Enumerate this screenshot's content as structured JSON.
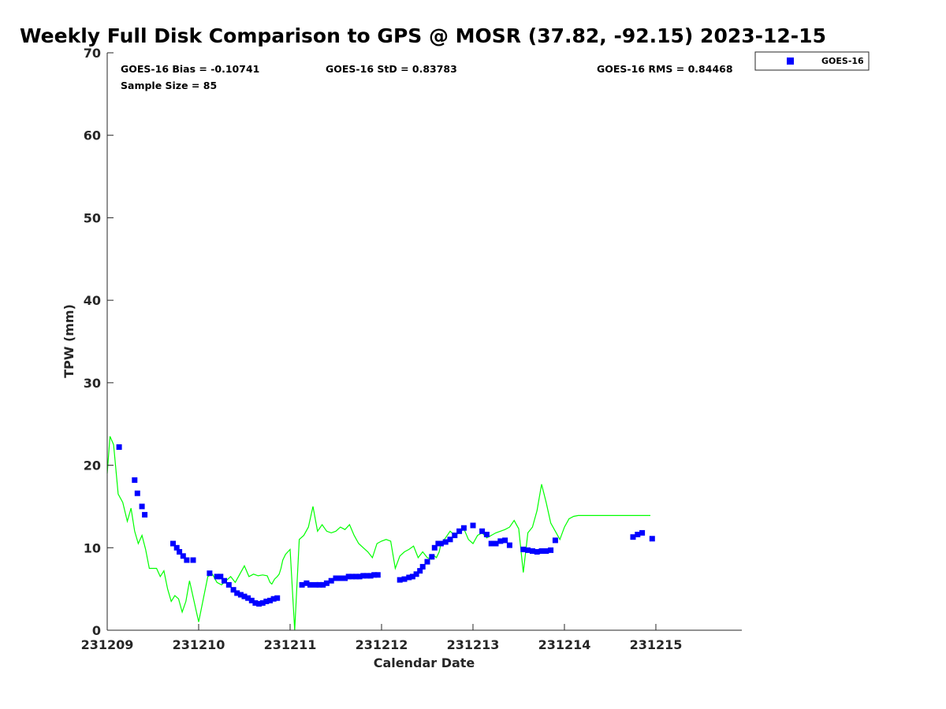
{
  "chart_data": {
    "type": "scatter",
    "title": "Weekly Full Disk Comparison to GPS @ MOSR (37.82, -92.15) 2023-12-15",
    "xlabel": "Calendar Date",
    "ylabel": "TPW (mm)",
    "xlim": [
      0,
      6.94
    ],
    "ylim": [
      0,
      70
    ],
    "x_ticks": [
      0,
      1,
      2,
      3,
      4,
      5,
      6
    ],
    "x_tick_labels": [
      "231209",
      "231210",
      "231211",
      "231212",
      "231213",
      "231214",
      "231215"
    ],
    "y_ticks": [
      0,
      10,
      20,
      30,
      40,
      50,
      60,
      70
    ],
    "y_tick_labels": [
      "0",
      "10",
      "20",
      "30",
      "40",
      "50",
      "60",
      "70"
    ],
    "stats": {
      "bias": "GOES-16 Bias = -0.10741",
      "std": "GOES-16 StD = 0.83783",
      "rms": "GOES-16 RMS = 0.84468",
      "sample_size": "Sample Size = 85"
    },
    "legend": {
      "label": "GOES-16",
      "position": "outside-top-right"
    },
    "series": [
      {
        "name": "GPS",
        "kind": "line",
        "color": "#00ff00",
        "x": [
          0.0,
          0.03,
          0.07,
          0.12,
          0.17,
          0.22,
          0.26,
          0.3,
          0.34,
          0.38,
          0.42,
          0.46,
          0.5,
          0.54,
          0.58,
          0.62,
          0.66,
          0.7,
          0.74,
          0.78,
          0.82,
          0.86,
          0.9,
          1.0,
          1.1,
          1.15,
          1.2,
          1.25,
          1.3,
          1.35,
          1.4,
          1.45,
          1.5,
          1.55,
          1.6,
          1.65,
          1.7,
          1.75,
          1.78,
          1.8,
          1.83,
          1.86,
          1.88,
          1.9,
          1.92,
          1.95,
          2.0,
          2.05,
          2.1,
          2.15,
          2.2,
          2.25,
          2.3,
          2.35,
          2.4,
          2.45,
          2.5,
          2.55,
          2.6,
          2.65,
          2.7,
          2.75,
          2.8,
          2.85,
          2.9,
          2.95,
          3.0,
          3.05,
          3.1,
          3.15,
          3.2,
          3.25,
          3.3,
          3.35,
          3.4,
          3.45,
          3.5,
          3.55,
          3.58,
          3.6,
          3.63,
          3.65,
          3.7,
          3.75,
          3.8,
          3.85,
          3.9,
          3.95,
          4.0,
          4.05,
          4.1,
          4.15,
          4.2,
          4.25,
          4.3,
          4.35,
          4.4,
          4.45,
          4.5,
          4.55,
          4.6,
          4.65,
          4.7,
          4.75,
          4.8,
          4.85,
          4.9,
          4.95,
          5.0,
          5.05,
          5.1,
          5.15,
          5.2,
          5.25,
          5.3,
          5.35,
          5.4,
          5.45,
          5.5,
          5.55,
          5.6,
          5.62,
          5.65,
          5.7,
          5.75,
          5.78,
          5.8,
          5.82,
          5.85,
          5.88,
          5.9,
          5.92,
          5.94
        ],
        "y": [
          19.0,
          23.5,
          22.5,
          16.5,
          15.5,
          13.2,
          14.8,
          12.0,
          10.5,
          11.5,
          9.8,
          7.5,
          7.5,
          7.5,
          6.5,
          7.2,
          5.0,
          3.5,
          4.2,
          3.8,
          2.2,
          3.5,
          6.0,
          1.0,
          6.5,
          6.8,
          5.8,
          5.5,
          6.0,
          6.5,
          5.8,
          6.8,
          7.8,
          6.5,
          6.8,
          6.6,
          6.7,
          6.6,
          5.8,
          5.6,
          6.2,
          6.5,
          6.8,
          7.5,
          8.5,
          9.2,
          9.8,
          0.0,
          11.0,
          11.5,
          12.5,
          15.0,
          12.0,
          12.8,
          12.0,
          11.8,
          12.0,
          12.5,
          12.2,
          12.8,
          11.5,
          10.5,
          10.0,
          9.5,
          8.8,
          10.5,
          10.8,
          11.0,
          10.8,
          7.5,
          9.0,
          9.5,
          9.8,
          10.2,
          8.8,
          9.5,
          8.8,
          8.6,
          9.0,
          8.8,
          9.5,
          10.5,
          11.2,
          12.0,
          11.5,
          11.8,
          12.3,
          11.0,
          10.5,
          11.5,
          11.8,
          11.2,
          11.5,
          11.8,
          12.0,
          12.2,
          12.5,
          13.3,
          12.3,
          7.0,
          11.8,
          12.5,
          14.5,
          17.7,
          15.5,
          13.0,
          12.0,
          11.0,
          12.5,
          13.5,
          13.8,
          13.9,
          13.9,
          13.9,
          13.9,
          13.9,
          13.9,
          13.9,
          13.9,
          13.9,
          13.9,
          13.9,
          13.9,
          13.9,
          13.9,
          13.9,
          13.9,
          13.9,
          13.9,
          13.9,
          13.9,
          13.9,
          13.9
        ],
        "segments_note": "drawn from GPS reference trace"
      },
      {
        "name": "GOES-16",
        "kind": "marker",
        "color": "#0000ff",
        "x": [
          0.13,
          0.3,
          0.33,
          0.38,
          0.41,
          0.72,
          0.76,
          0.79,
          0.83,
          0.87,
          0.94,
          1.12,
          1.2,
          1.24,
          1.28,
          1.33,
          1.38,
          1.42,
          1.46,
          1.5,
          1.54,
          1.58,
          1.62,
          1.66,
          1.7,
          1.74,
          1.78,
          1.82,
          1.86,
          2.13,
          2.18,
          2.22,
          2.28,
          2.32,
          2.36,
          2.4,
          2.45,
          2.5,
          2.55,
          2.6,
          2.64,
          2.68,
          2.72,
          2.76,
          2.8,
          2.84,
          2.88,
          2.92,
          2.96,
          3.2,
          3.25,
          3.3,
          3.34,
          3.38,
          3.42,
          3.45,
          3.5,
          3.55,
          3.58,
          3.62,
          3.65,
          3.7,
          3.75,
          3.8,
          3.85,
          3.9,
          4.0,
          4.1,
          4.15,
          4.2,
          4.25,
          4.3,
          4.35,
          4.4,
          4.55,
          4.6,
          4.65,
          4.7,
          4.75,
          4.8,
          4.85,
          4.9,
          5.75,
          5.8,
          5.85
        ],
        "y": [
          22.2,
          18.2,
          16.6,
          15.0,
          14.0,
          10.5,
          10.0,
          9.5,
          9.0,
          8.5,
          8.5,
          6.9,
          6.5,
          6.5,
          6.0,
          5.5,
          4.9,
          4.5,
          4.3,
          4.1,
          3.9,
          3.6,
          3.3,
          3.2,
          3.3,
          3.5,
          3.6,
          3.8,
          3.9,
          5.5,
          5.7,
          5.5,
          5.5,
          5.5,
          5.5,
          5.7,
          6.0,
          6.3,
          6.3,
          6.3,
          6.5,
          6.5,
          6.5,
          6.5,
          6.6,
          6.6,
          6.6,
          6.7,
          6.7,
          6.1,
          6.2,
          6.4,
          6.5,
          6.8,
          7.2,
          7.7,
          8.3,
          8.9,
          10.0,
          10.5,
          10.5,
          10.7,
          11.0,
          11.5,
          12.0,
          12.4,
          12.7,
          12.0,
          11.6,
          10.5,
          10.5,
          10.8,
          10.9,
          10.3,
          9.8,
          9.7,
          9.6,
          9.5,
          9.6,
          9.6,
          9.7,
          10.9,
          11.3,
          11.6,
          11.8
        ],
        "x_extra": [
          5.96
        ],
        "y_extra": [
          11.1
        ]
      }
    ]
  }
}
